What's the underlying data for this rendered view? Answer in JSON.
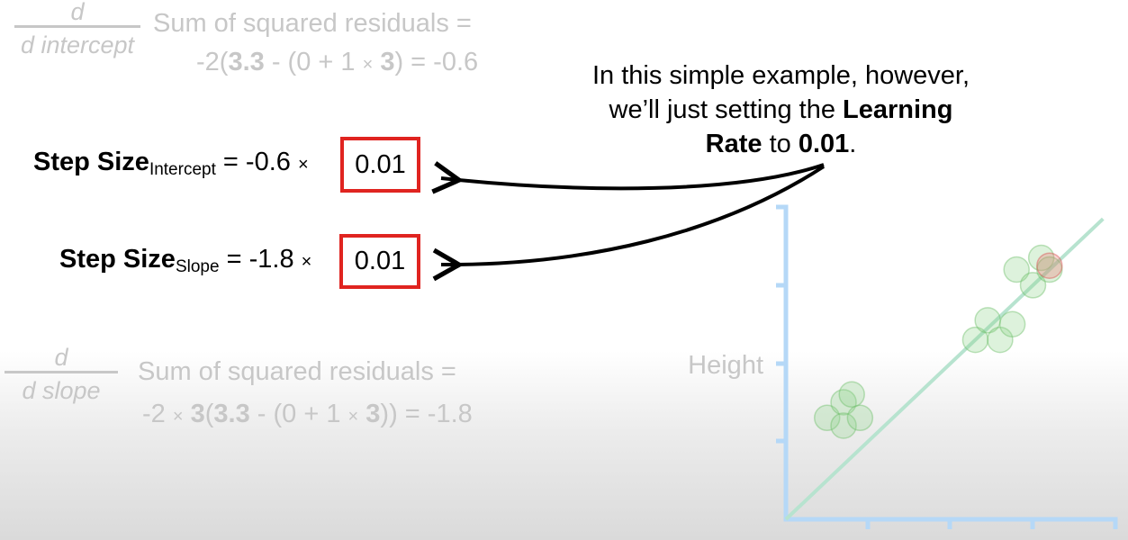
{
  "top_formula": {
    "frac_num": "d",
    "frac_den": "d intercept",
    "line1": "Sum of squared residuals =",
    "line2_parts": [
      "-2(",
      "3.3",
      " - (0 + 1 ",
      "×",
      " ",
      "3",
      ") = -0.6"
    ]
  },
  "step_intercept": {
    "label": "Step Size",
    "sub": "Intercept",
    "expr": " = -0.6 ",
    "times": "×",
    "rate": "0.01"
  },
  "step_slope": {
    "label": "Step Size",
    "sub": "Slope",
    "expr": " = -1.8 ",
    "times": "×",
    "rate": "0.01"
  },
  "bottom_formula": {
    "frac_num": "d",
    "frac_den": "d slope",
    "line1": "Sum of squared residuals =",
    "line2_parts": [
      "-2 ",
      "×",
      " ",
      "3",
      "(",
      "3.3",
      " - (0 + 1 ",
      "×",
      " ",
      "3",
      ")) = -1.8"
    ]
  },
  "note": {
    "line1": "In this simple example, however,",
    "line2a": "we’ll just setting the ",
    "line2b": "Learning",
    "line3a": "Rate",
    "line3b": " to ",
    "line3c": "0.01",
    "line3d": "."
  },
  "chart_data": {
    "type": "scatter",
    "ylabel": "Height",
    "xlabel": "",
    "title": "",
    "points_green": [
      [
        0.5,
        1.3
      ],
      [
        0.7,
        1.5
      ],
      [
        0.7,
        1.2
      ],
      [
        0.8,
        1.6
      ],
      [
        0.9,
        1.3
      ],
      [
        2.3,
        2.3
      ],
      [
        2.45,
        2.55
      ],
      [
        2.6,
        2.3
      ],
      [
        2.75,
        2.5
      ],
      [
        2.8,
        3.2
      ],
      [
        3.0,
        3.0
      ],
      [
        3.1,
        3.35
      ],
      [
        3.2,
        3.2
      ]
    ],
    "points_red": [
      [
        3.2,
        3.25
      ]
    ],
    "line": {
      "intercept": 0,
      "slope": 1
    },
    "colors": {
      "points": "#8fd48a",
      "highlight": "#f07070",
      "line": "#b7e3cf",
      "axis": "#b5d8f7"
    }
  },
  "colors": {
    "box": "#e02420",
    "faded": "#c7c7c7"
  }
}
